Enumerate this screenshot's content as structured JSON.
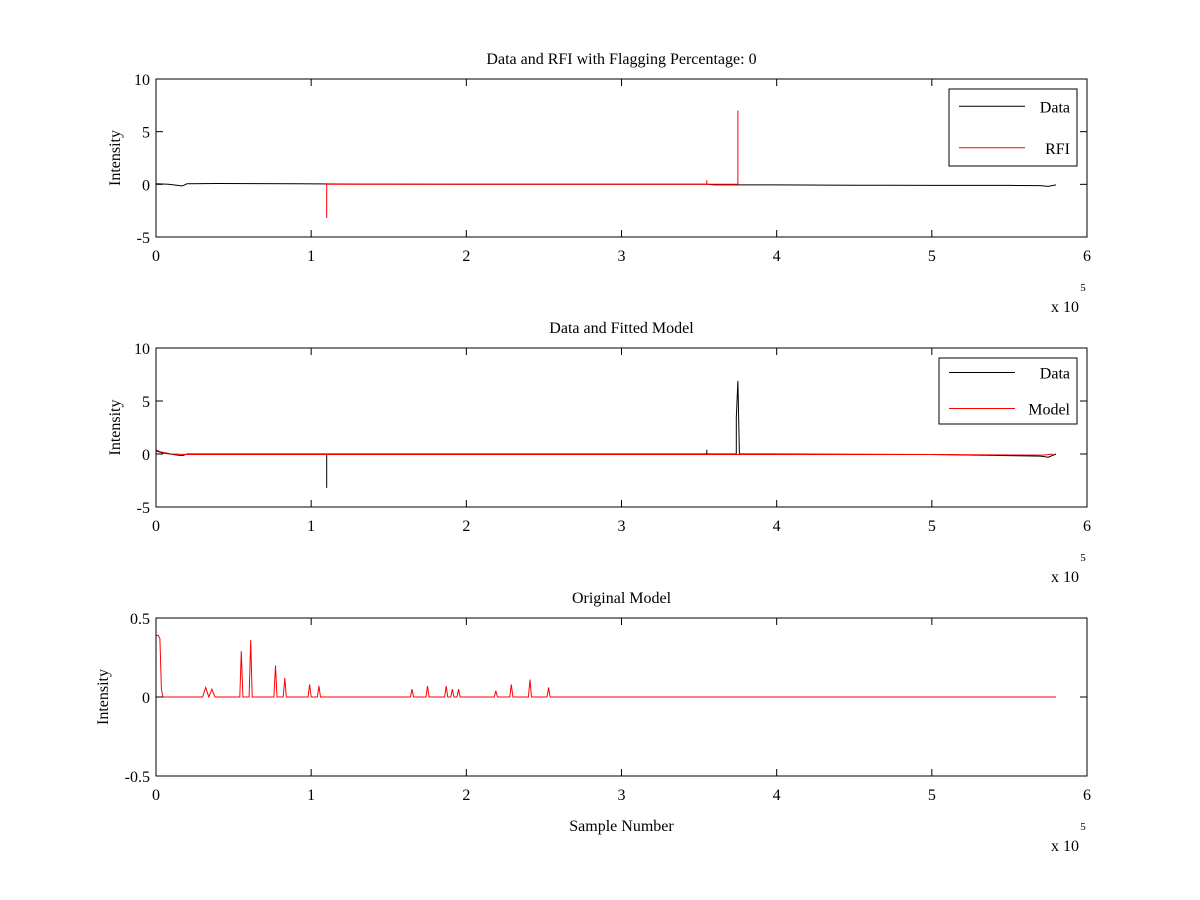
{
  "chart_data": [
    {
      "type": "line",
      "title": "Data and RFI with Flagging Percentage: 0",
      "xlabel": "",
      "ylabel": "Intensity",
      "xlim": [
        0,
        600000
      ],
      "ylim": [
        -5,
        10
      ],
      "xticks": [
        0,
        100000,
        200000,
        300000,
        400000,
        500000,
        600000
      ],
      "xtick_labels": [
        "0",
        "1",
        "2",
        "3",
        "4",
        "5",
        "6"
      ],
      "yticks": [
        -5,
        0,
        5,
        10
      ],
      "ytick_labels": [
        "-5",
        "0",
        "5",
        "10"
      ],
      "x_multiplier": {
        "base": "x 10",
        "exponent": "5"
      },
      "grid": false,
      "legend_position": "top-right",
      "legend": [
        "Data",
        "RFI"
      ],
      "series": [
        {
          "name": "Data",
          "color": "#000000",
          "points": [
            [
              0,
              0.05
            ],
            [
              8000,
              0.0
            ],
            [
              14000,
              -0.1
            ],
            [
              17000,
              -0.15
            ],
            [
              20000,
              0.05
            ],
            [
              40000,
              0.08
            ],
            [
              90000,
              0.05
            ],
            [
              130000,
              0.02
            ],
            [
              200000,
              0.0
            ],
            [
              300000,
              0.0
            ],
            [
              355000,
              0.0
            ],
            [
              360000,
              -0.05
            ],
            [
              400000,
              -0.05
            ],
            [
              450000,
              -0.08
            ],
            [
              500000,
              -0.1
            ],
            [
              550000,
              -0.1
            ],
            [
              570000,
              -0.12
            ],
            [
              575000,
              -0.2
            ],
            [
              580000,
              -0.05
            ]
          ]
        },
        {
          "name": "RFI",
          "color": "#ff0000",
          "points": [
            [
              110000,
              0
            ],
            [
              110000,
              -3.2
            ],
            [
              110000,
              0
            ],
            [
              355000,
              0
            ],
            [
              355000,
              0.4
            ],
            [
              355000,
              0
            ],
            [
              375000,
              0
            ],
            [
              375000,
              7.0
            ],
            [
              375000,
              0
            ]
          ]
        }
      ]
    },
    {
      "type": "line",
      "title": "Data and Fitted Model",
      "xlabel": "",
      "ylabel": "Intensity",
      "xlim": [
        0,
        600000
      ],
      "ylim": [
        -5,
        10
      ],
      "xticks": [
        0,
        100000,
        200000,
        300000,
        400000,
        500000,
        600000
      ],
      "xtick_labels": [
        "0",
        "1",
        "2",
        "3",
        "4",
        "5",
        "6"
      ],
      "yticks": [
        -5,
        0,
        5,
        10
      ],
      "ytick_labels": [
        "-5",
        "0",
        "5",
        "10"
      ],
      "x_multiplier": {
        "base": "x 10",
        "exponent": "5"
      },
      "grid": false,
      "legend_position": "top-right",
      "legend": [
        "Data",
        "Model"
      ],
      "series": [
        {
          "name": "Data",
          "color": "#000000",
          "points": [
            [
              0,
              0.3
            ],
            [
              4000,
              0.1
            ],
            [
              14000,
              -0.1
            ],
            [
              17000,
              -0.15
            ],
            [
              20000,
              0.0
            ],
            [
              110000,
              0.0
            ],
            [
              110000,
              -3.2
            ],
            [
              110000,
              0.0
            ],
            [
              355000,
              0.0
            ],
            [
              355000,
              0.4
            ],
            [
              355000,
              0.0
            ],
            [
              374000,
              0.0
            ],
            [
              374000,
              3.4
            ],
            [
              375000,
              6.9
            ],
            [
              376000,
              0.0
            ],
            [
              500000,
              -0.05
            ],
            [
              570000,
              -0.2
            ],
            [
              575000,
              -0.3
            ],
            [
              580000,
              0.0
            ]
          ]
        },
        {
          "name": "Model",
          "color": "#ff0000",
          "points": [
            [
              0,
              0.4
            ],
            [
              3000,
              0.2
            ],
            [
              10000,
              0.0
            ],
            [
              20000,
              -0.05
            ],
            [
              100000,
              -0.05
            ],
            [
              300000,
              -0.05
            ],
            [
              500000,
              -0.05
            ],
            [
              572000,
              -0.1
            ],
            [
              578000,
              0.0
            ]
          ]
        }
      ]
    },
    {
      "type": "line",
      "title": "Original Model",
      "xlabel": "Sample Number",
      "ylabel": "Intensity",
      "xlim": [
        0,
        600000
      ],
      "ylim": [
        -0.5,
        0.5
      ],
      "xticks": [
        0,
        100000,
        200000,
        300000,
        400000,
        500000,
        600000
      ],
      "xtick_labels": [
        "0",
        "1",
        "2",
        "3",
        "4",
        "5",
        "6"
      ],
      "yticks": [
        -0.5,
        0,
        0.5
      ],
      "ytick_labels": [
        "-0.5",
        "0",
        "0.5"
      ],
      "x_multiplier": {
        "base": "x 10",
        "exponent": "5"
      },
      "grid": false,
      "series": [
        {
          "name": "",
          "color": "#ff0000",
          "points": [
            [
              0,
              0.39
            ],
            [
              1500,
              0.39
            ],
            [
              2500,
              0.37
            ],
            [
              3500,
              0.05
            ],
            [
              4500,
              0.0
            ],
            [
              30000,
              0.0
            ],
            [
              32000,
              0.06
            ],
            [
              34000,
              0.0
            ],
            [
              36000,
              0.05
            ],
            [
              38000,
              0.0
            ],
            [
              54000,
              0.0
            ],
            [
              55000,
              0.29
            ],
            [
              56000,
              0.0
            ],
            [
              60000,
              0.0
            ],
            [
              61000,
              0.36
            ],
            [
              62000,
              0.0
            ],
            [
              76000,
              0.0
            ],
            [
              77000,
              0.2
            ],
            [
              78000,
              0.0
            ],
            [
              82000,
              0.0
            ],
            [
              83000,
              0.12
            ],
            [
              84000,
              0.0
            ],
            [
              98000,
              0.0
            ],
            [
              99000,
              0.08
            ],
            [
              100000,
              0.0
            ],
            [
              104000,
              0.0
            ],
            [
              105000,
              0.07
            ],
            [
              106000,
              0.0
            ],
            [
              164000,
              0.0
            ],
            [
              165000,
              0.05
            ],
            [
              166000,
              0.0
            ],
            [
              174000,
              0.0
            ],
            [
              175000,
              0.07
            ],
            [
              176000,
              0.0
            ],
            [
              186000,
              0.0
            ],
            [
              187000,
              0.07
            ],
            [
              188000,
              0.0
            ],
            [
              190000,
              0.0
            ],
            [
              191000,
              0.05
            ],
            [
              192000,
              0.0
            ],
            [
              194000,
              0.0
            ],
            [
              195000,
              0.05
            ],
            [
              196000,
              0.0
            ],
            [
              218000,
              0.0
            ],
            [
              219000,
              0.04
            ],
            [
              220000,
              0.0
            ],
            [
              228000,
              0.0
            ],
            [
              229000,
              0.08
            ],
            [
              230000,
              0.0
            ],
            [
              240000,
              0.0
            ],
            [
              241000,
              0.11
            ],
            [
              242000,
              0.0
            ],
            [
              252000,
              0.0
            ],
            [
              253000,
              0.06
            ],
            [
              254000,
              0.0
            ],
            [
              580000,
              0.0
            ]
          ]
        }
      ]
    }
  ]
}
